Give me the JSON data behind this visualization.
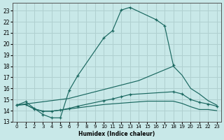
{
  "background_color": "#c8e8e8",
  "grid_color": "#b0d0d0",
  "line_color": "#1a6860",
  "xlabel": "Humidex (Indice chaleur)",
  "ylim": [
    13,
    23.7
  ],
  "xlim": [
    -0.5,
    23.5
  ],
  "yticks": [
    13,
    14,
    15,
    16,
    17,
    18,
    19,
    20,
    21,
    22,
    23
  ],
  "xticks": [
    0,
    1,
    2,
    3,
    4,
    5,
    6,
    7,
    8,
    9,
    10,
    11,
    12,
    13,
    14,
    15,
    16,
    17,
    18,
    19,
    20,
    21,
    22,
    23
  ],
  "curve_peak_x": [
    0,
    1,
    2,
    3,
    4,
    5,
    6,
    7,
    10,
    11,
    12,
    13,
    16,
    17,
    18
  ],
  "curve_peak_y": [
    14.5,
    14.8,
    14.2,
    13.65,
    13.35,
    13.35,
    15.8,
    17.15,
    20.55,
    21.2,
    23.05,
    23.3,
    22.2,
    21.65,
    18.1
  ],
  "curve_diag_x": [
    0,
    6,
    10,
    14,
    18,
    19,
    20,
    21,
    22,
    23
  ],
  "curve_diag_y": [
    14.5,
    15.1,
    15.9,
    16.7,
    18.0,
    17.2,
    16.0,
    15.5,
    14.9,
    14.5
  ],
  "curve_low_x": [
    0,
    1,
    2,
    3,
    4,
    5,
    6,
    7,
    10,
    11,
    12,
    13,
    18,
    19,
    20,
    21,
    22,
    23
  ],
  "curve_low_y": [
    14.5,
    14.55,
    14.15,
    13.95,
    13.95,
    14.05,
    14.2,
    14.4,
    14.9,
    15.05,
    15.25,
    15.45,
    15.7,
    15.5,
    15.0,
    14.75,
    14.6,
    14.4
  ],
  "curve_flat_x": [
    0,
    1,
    2,
    3,
    4,
    5,
    10,
    15,
    18,
    19,
    20,
    21,
    22,
    23
  ],
  "curve_flat_y": [
    14.5,
    14.55,
    14.15,
    13.95,
    13.95,
    14.05,
    14.55,
    14.85,
    14.85,
    14.65,
    14.35,
    14.1,
    14.1,
    14.0
  ]
}
